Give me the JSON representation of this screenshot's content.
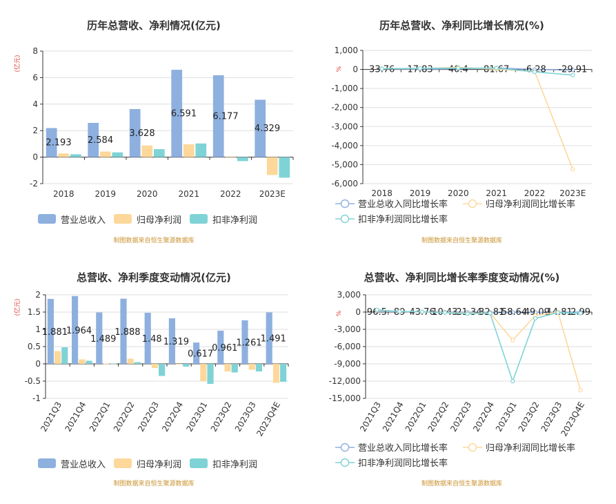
{
  "source_note": "制图数据来自恒生聚源数据库",
  "chart_data": [
    {
      "type": "bar",
      "title": "历年总营收、净利情况(亿元)",
      "unit": "(亿元)",
      "categories": [
        "2018",
        "2019",
        "2020",
        "2021",
        "2022",
        "2023E"
      ],
      "ylim": [
        -2,
        8
      ],
      "yticks": [
        -2,
        0,
        2,
        4,
        6,
        8
      ],
      "series": [
        {
          "name": "营业总收入",
          "color": "#8eb0df",
          "values": [
            2.193,
            2.584,
            3.628,
            6.591,
            6.177,
            4.329
          ],
          "labels": [
            "2.193",
            "2.584",
            "3.628",
            "6.591",
            "6.177",
            "4.329"
          ]
        },
        {
          "name": "归母净利润",
          "color": "#fdd89a",
          "values": [
            0.28,
            0.42,
            0.88,
            0.97,
            -0.03,
            -1.35
          ]
        },
        {
          "name": "扣非净利润",
          "color": "#7fd3d6",
          "values": [
            0.22,
            0.36,
            0.6,
            1.03,
            -0.3,
            -1.55
          ]
        }
      ],
      "legend_position": "bottom",
      "grid": true
    },
    {
      "type": "line",
      "title": "历年总营收、净利同比增长情况(%)",
      "unit": "%",
      "categories": [
        "2018",
        "2019",
        "2020",
        "2021",
        "2022",
        "2023E"
      ],
      "ylim": [
        -6000,
        1000
      ],
      "yticks": [
        -6000,
        -5000,
        -4000,
        -3000,
        -2000,
        -1000,
        0,
        1000
      ],
      "ytick_labels": [
        "-6,000",
        "-5,000",
        "-4,000",
        "-3,000",
        "-2,000",
        "-1,000",
        "0",
        "1,000"
      ],
      "series": [
        {
          "name": "营业总收入同比增长率",
          "color": "#8eb0df",
          "values": [
            33.76,
            17.83,
            40.4,
            81.67,
            -6.28,
            -29.91
          ],
          "labels": [
            "33.76",
            "17.83",
            "40.4",
            "81.67",
            "-6.28",
            "-29.91"
          ]
        },
        {
          "name": "归母净利润同比增长率",
          "color": "#fdd89a",
          "values": [
            40,
            50,
            110,
            10,
            -103,
            -5250
          ]
        },
        {
          "name": "扣非净利润同比增长率",
          "color": "#7fd3d6",
          "values": [
            38,
            60,
            70,
            70,
            -129,
            -300
          ]
        }
      ],
      "legend_position": "bottom",
      "grid": true
    },
    {
      "type": "bar",
      "title": "总营收、净利季度变动情况(亿元)",
      "unit": "(亿元)",
      "categories": [
        "2021Q3",
        "2021Q4",
        "2022Q1",
        "2022Q2",
        "2022Q3",
        "2022Q4",
        "2023Q1",
        "2023Q2",
        "2023Q3",
        "2023Q4E"
      ],
      "ylim": [
        -1,
        2
      ],
      "yticks": [
        -1,
        -0.5,
        0,
        0.5,
        1,
        1.5,
        2
      ],
      "series": [
        {
          "name": "营业总收入",
          "color": "#8eb0df",
          "values": [
            1.881,
            1.964,
            1.489,
            1.888,
            1.48,
            1.319,
            0.617,
            0.961,
            1.261,
            1.491
          ],
          "labels": [
            "1.881",
            "1.964",
            "1.489",
            "1.888",
            "1.48",
            "1.319",
            "0.617",
            "0.961",
            "1.261",
            "1.491"
          ]
        },
        {
          "name": "归母净利润",
          "color": "#fdd89a",
          "values": [
            0.37,
            0.13,
            0.01,
            0.15,
            -0.12,
            0.0,
            -0.5,
            -0.22,
            -0.17,
            -0.55
          ]
        },
        {
          "name": "扣非净利润",
          "color": "#7fd3d6",
          "values": [
            0.48,
            0.09,
            0.01,
            0.05,
            -0.35,
            -0.08,
            -0.58,
            -0.25,
            -0.22,
            -0.52
          ]
        }
      ],
      "legend_position": "bottom",
      "grid": true
    },
    {
      "type": "line",
      "title": "总营收、净利同比增长率季度变动情况(%)",
      "unit": "%",
      "categories": [
        "2021Q3",
        "2021Q4",
        "2022Q1",
        "2022Q2",
        "2022Q3",
        "2022Q4",
        "2023Q1",
        "2023Q2",
        "2023Q3",
        "2023Q4E"
      ],
      "ylim": [
        -15000,
        3000
      ],
      "yticks": [
        -15000,
        -12000,
        -9000,
        -6000,
        -3000,
        0,
        3000
      ],
      "ytick_labels": [
        "-15,000",
        "-12,000",
        "-9,000",
        "-6,000",
        "-3,000",
        "0",
        "3,000"
      ],
      "series": [
        {
          "name": "营业总收入同比增长率",
          "color": "#8eb0df",
          "values": [
            96.5,
            89,
            43.76,
            10.43,
            -21.34,
            -32.81,
            -58.64,
            -49.09,
            -14.81,
            2.99
          ],
          "labels": [
            "96.5",
            "89",
            "43.76",
            "10.43",
            "-21.34",
            "-32.81",
            "-58.64",
            "-49.09",
            "-14.81",
            "2.99"
          ]
        },
        {
          "name": "归母净利润同比增长率",
          "color": "#fdd89a",
          "values": [
            300,
            120,
            30,
            -60,
            -200,
            -150,
            -4900,
            -600,
            0,
            -13600
          ]
        },
        {
          "name": "扣非净利润同比增长率",
          "color": "#7fd3d6",
          "values": [
            400,
            100,
            50,
            -100,
            -300,
            -200,
            -12000,
            -1100,
            -100,
            -200
          ]
        }
      ],
      "legend_position": "bottom",
      "grid": true
    }
  ]
}
